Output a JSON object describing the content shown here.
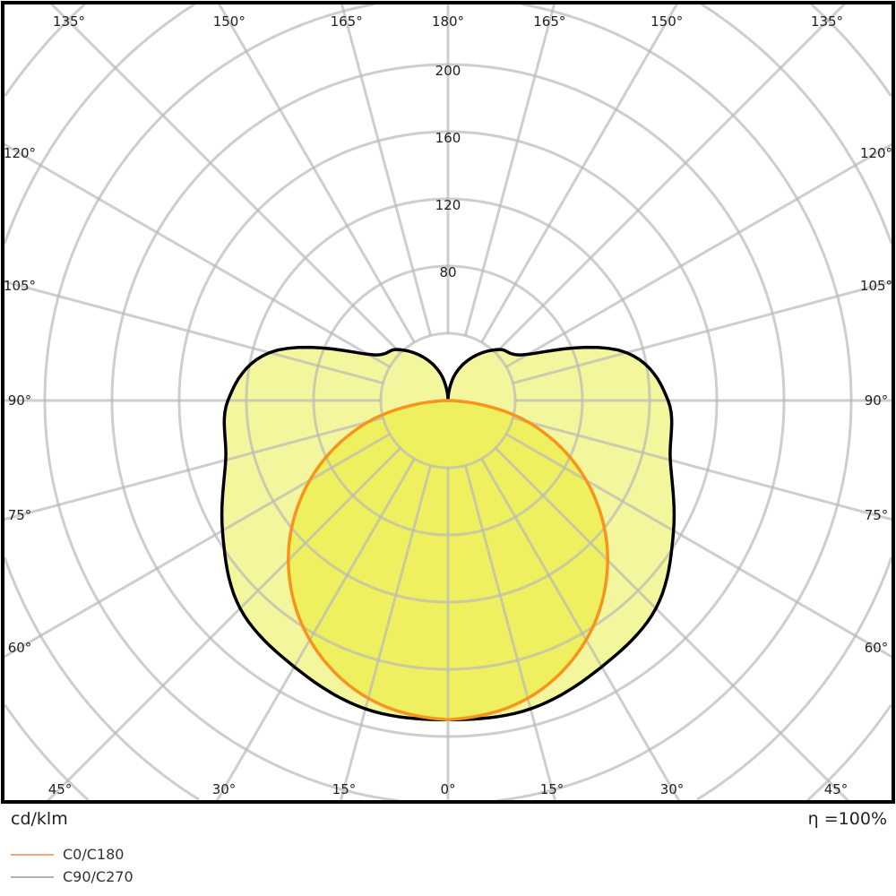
{
  "chart_data": {
    "type": "polar",
    "unit_label": "cd/klm",
    "efficiency_label": "η =100%",
    "radial_ticks": [
      80,
      120,
      160,
      200
    ],
    "radial_grid_step": 40,
    "rmax": 240,
    "angle_grid_step_deg": 15,
    "angle_labels": {
      "top": [
        "135°",
        "150°",
        "165°",
        "180°",
        "165°",
        "150°",
        "135°"
      ],
      "left": [
        "120°",
        "105°",
        "90°",
        "75°",
        "60°"
      ],
      "right": [
        "120°",
        "105°",
        "90°",
        "75°",
        "60°"
      ],
      "bottom": [
        "45°",
        "30°",
        "15°",
        "0°",
        "15°",
        "30°",
        "45°"
      ]
    },
    "grid": true,
    "series": [
      {
        "name": "C0/C180",
        "color": "#f7941d",
        "fill": "#eef060",
        "angles": [
          0,
          15,
          30,
          45,
          60,
          75,
          90
        ],
        "values": [
          190,
          183.5,
          164.5,
          134.4,
          95,
          49.2,
          0
        ]
      },
      {
        "name": "C90/C270",
        "color": "#000000",
        "legend_color": "#b0b0b0",
        "fill": "#f3f69c",
        "angles": [
          0,
          15,
          30,
          45,
          60,
          75,
          90,
          105,
          120,
          135,
          150,
          165,
          180
        ],
        "values": [
          190,
          190,
          183,
          175,
          155,
          137,
          131,
          110,
          55,
          43,
          30,
          16,
          0
        ]
      }
    ]
  }
}
